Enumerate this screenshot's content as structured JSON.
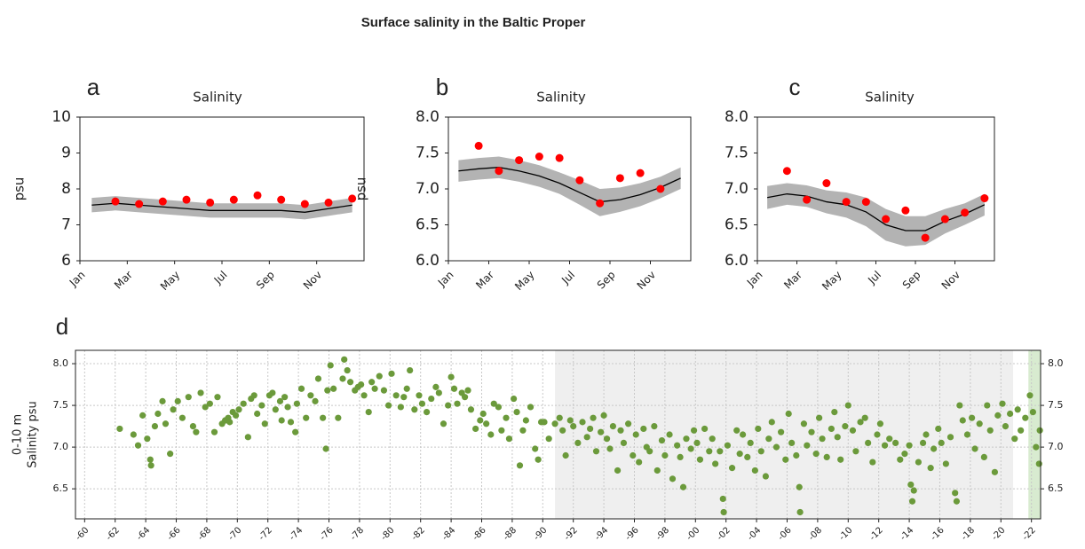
{
  "title": "Surface salinity in the Baltic Proper",
  "chart_data": [
    {
      "type": "band_line",
      "panel": "a",
      "title": "Salinity",
      "y_label": "psu",
      "categories": [
        "Jan",
        null,
        "Mar",
        null,
        "May",
        null,
        "Jul",
        null,
        "Sep",
        null,
        "Nov",
        null
      ],
      "line": [
        7.55,
        7.6,
        7.55,
        7.5,
        7.45,
        7.4,
        7.4,
        7.4,
        7.4,
        7.35,
        7.45,
        7.55
      ],
      "line_color": "#000000",
      "band_low": [
        7.35,
        7.4,
        7.35,
        7.3,
        7.25,
        7.2,
        7.2,
        7.2,
        7.2,
        7.15,
        7.25,
        7.35
      ],
      "band_high": [
        7.75,
        7.8,
        7.75,
        7.7,
        7.65,
        7.6,
        7.6,
        7.6,
        7.6,
        7.55,
        7.65,
        7.75
      ],
      "band_color": "#b3b3b3",
      "observed": [
        null,
        7.65,
        7.58,
        7.65,
        7.7,
        7.62,
        7.7,
        7.82,
        7.7,
        7.58,
        7.62,
        7.73
      ],
      "observed_color": "#ff0000",
      "ylim": [
        6,
        10
      ],
      "yticks": [
        6,
        7,
        8,
        9,
        10
      ]
    },
    {
      "type": "band_line",
      "panel": "b",
      "title": "Salinity",
      "y_label": "psu",
      "categories": [
        "Jan",
        null,
        "Mar",
        null,
        "May",
        null,
        "Jul",
        null,
        "Sep",
        null,
        "Nov",
        null
      ],
      "line": [
        7.25,
        7.28,
        7.3,
        7.25,
        7.18,
        7.08,
        6.95,
        6.82,
        6.85,
        6.92,
        7.02,
        7.15
      ],
      "line_color": "#000000",
      "band_low": [
        7.1,
        7.13,
        7.15,
        7.1,
        7.03,
        6.93,
        6.78,
        6.62,
        6.68,
        6.76,
        6.87,
        7.0
      ],
      "band_high": [
        7.4,
        7.43,
        7.45,
        7.4,
        7.33,
        7.23,
        7.12,
        7.0,
        7.02,
        7.08,
        7.17,
        7.3
      ],
      "band_color": "#b3b3b3",
      "observed": [
        null,
        7.6,
        7.25,
        7.4,
        7.45,
        7.43,
        7.12,
        6.8,
        7.15,
        7.22,
        7.0,
        null
      ],
      "observed_color": "#ff0000",
      "ylim": [
        6,
        8
      ],
      "yticks": [
        {
          "value": 6,
          "label": "6.0"
        },
        6.5,
        {
          "value": 7,
          "label": "7.0"
        },
        7.5,
        {
          "value": 8,
          "label": "8.0"
        }
      ]
    },
    {
      "type": "band_line",
      "panel": "c",
      "title": "Salinity",
      "categories": [
        "Jan",
        null,
        "Mar",
        null,
        "May",
        null,
        "Jul",
        null,
        "Sep",
        null,
        "Nov",
        null
      ],
      "line": [
        6.88,
        6.93,
        6.9,
        6.82,
        6.78,
        6.68,
        6.5,
        6.42,
        6.42,
        6.55,
        6.65,
        6.78
      ],
      "line_color": "#000000",
      "band_low": [
        6.72,
        6.78,
        6.75,
        6.66,
        6.6,
        6.48,
        6.28,
        6.2,
        6.22,
        6.38,
        6.5,
        6.63
      ],
      "band_high": [
        7.04,
        7.08,
        7.05,
        6.98,
        6.95,
        6.88,
        6.72,
        6.62,
        6.62,
        6.72,
        6.8,
        6.93
      ],
      "band_color": "#b3b3b3",
      "observed": [
        null,
        7.25,
        6.85,
        7.08,
        6.82,
        6.82,
        6.58,
        6.7,
        6.32,
        6.58,
        6.67,
        6.87
      ],
      "observed_color": "#ff0000",
      "ylim": [
        6,
        8
      ],
      "yticks": [
        {
          "value": 6,
          "label": "6.0"
        },
        6.5,
        {
          "value": 7,
          "label": "7.0"
        },
        7.5,
        {
          "value": 8,
          "label": "8.0"
        }
      ]
    },
    {
      "type": "scatter",
      "panel": "d",
      "y_label": [
        "0-10 m",
        "Salinity psu"
      ],
      "x": [
        1962.3,
        1963.2,
        1963.5,
        1963.8,
        1964.1,
        1964.3,
        1964.35,
        1964.6,
        1964.8,
        1965.1,
        1965.3,
        1965.6,
        1965.8,
        1966.1,
        1966.4,
        1966.8,
        1967.1,
        1967.3,
        1967.6,
        1967.9,
        1968.2,
        1968.5,
        1968.7,
        1969.0,
        1969.2,
        1969.4,
        1969.5,
        1969.7,
        1969.9,
        1970.1,
        1970.4,
        1970.7,
        1970.9,
        1971.1,
        1971.3,
        1971.6,
        1971.8,
        1972.1,
        1972.3,
        1972.5,
        1972.8,
        1972.9,
        1973.1,
        1973.3,
        1973.5,
        1973.8,
        1973.9,
        1974.2,
        1974.5,
        1974.8,
        1975.1,
        1975.3,
        1975.6,
        1975.8,
        1975.9,
        1976.1,
        1976.3,
        1976.6,
        1976.9,
        1977.0,
        1977.2,
        1977.4,
        1977.7,
        1977.9,
        1978.1,
        1978.3,
        1978.6,
        1978.8,
        1979.0,
        1979.3,
        1979.6,
        1979.9,
        1980.1,
        1980.4,
        1980.7,
        1980.9,
        1981.1,
        1981.3,
        1981.6,
        1981.9,
        1982.1,
        1982.4,
        1982.7,
        1983.0,
        1983.2,
        1983.5,
        1983.8,
        1984.0,
        1984.2,
        1984.4,
        1984.7,
        1984.9,
        1985.1,
        1985.3,
        1985.6,
        1985.9,
        1986.1,
        1986.3,
        1986.6,
        1986.8,
        1987.1,
        1987.3,
        1987.6,
        1987.8,
        1988.1,
        1988.3,
        1988.5,
        1988.7,
        1988.9,
        1989.2,
        1989.5,
        1989.7,
        1989.9,
        1990.1,
        1990.4,
        1990.8,
        1991.1,
        1991.3,
        1991.5,
        1991.8,
        1992.0,
        1992.3,
        1992.6,
        1992.9,
        1993.1,
        1993.3,
        1993.5,
        1993.8,
        1994.0,
        1994.2,
        1994.4,
        1994.6,
        1994.9,
        1995.1,
        1995.3,
        1995.6,
        1995.9,
        1996.1,
        1996.3,
        1996.6,
        1996.8,
        1997.0,
        1997.3,
        1997.5,
        1997.8,
        1998.0,
        1998.3,
        1998.5,
        1998.8,
        1999.0,
        1999.2,
        1999.4,
        1999.7,
        1999.9,
        2000.1,
        2000.3,
        2000.6,
        2000.9,
        2001.1,
        2001.3,
        2001.6,
        2001.8,
        2001.85,
        2002.1,
        2002.4,
        2002.7,
        2002.9,
        2003.1,
        2003.4,
        2003.6,
        2003.9,
        2004.1,
        2004.3,
        2004.6,
        2004.8,
        2005.0,
        2005.3,
        2005.6,
        2005.9,
        2006.1,
        2006.3,
        2006.6,
        2006.8,
        2006.85,
        2007.1,
        2007.3,
        2007.6,
        2007.9,
        2008.1,
        2008.3,
        2008.6,
        2008.9,
        2009.1,
        2009.3,
        2009.5,
        2009.8,
        2010.0,
        2010.3,
        2010.5,
        2010.8,
        2011.1,
        2011.3,
        2011.6,
        2011.9,
        2012.1,
        2012.4,
        2012.7,
        2013.1,
        2013.4,
        2013.7,
        2014.0,
        2014.1,
        2014.2,
        2014.3,
        2014.6,
        2014.9,
        2015.1,
        2015.4,
        2015.6,
        2015.9,
        2016.1,
        2016.4,
        2016.7,
        2017.0,
        2017.1,
        2017.3,
        2017.5,
        2017.8,
        2018.1,
        2018.3,
        2018.6,
        2018.9,
        2019.1,
        2019.3,
        2019.6,
        2019.8,
        2020.1,
        2020.3,
        2020.6,
        2020.9,
        2021.1,
        2021.3,
        2021.6,
        2021.9,
        2022.1,
        2022.3,
        2022.5,
        2022.55
      ],
      "values": [
        7.22,
        7.15,
        7.02,
        7.38,
        7.1,
        6.85,
        6.78,
        7.25,
        7.4,
        7.55,
        7.28,
        6.92,
        7.45,
        7.55,
        7.35,
        7.6,
        7.25,
        7.18,
        7.65,
        7.48,
        7.52,
        7.18,
        7.6,
        7.28,
        7.32,
        7.35,
        7.3,
        7.42,
        7.38,
        7.45,
        7.52,
        7.12,
        7.58,
        7.62,
        7.4,
        7.5,
        7.28,
        7.62,
        7.65,
        7.45,
        7.55,
        7.32,
        7.6,
        7.48,
        7.3,
        7.18,
        7.52,
        7.7,
        7.35,
        7.62,
        7.55,
        7.82,
        7.35,
        6.98,
        7.68,
        7.98,
        7.7,
        7.35,
        7.82,
        8.05,
        7.92,
        7.78,
        7.68,
        7.72,
        7.75,
        7.62,
        7.42,
        7.78,
        7.7,
        7.85,
        7.68,
        7.5,
        7.88,
        7.62,
        7.48,
        7.6,
        7.7,
        7.92,
        7.45,
        7.62,
        7.52,
        7.42,
        7.58,
        7.72,
        7.65,
        7.28,
        7.5,
        7.84,
        7.7,
        7.52,
        7.65,
        7.6,
        7.68,
        7.45,
        7.22,
        7.32,
        7.4,
        7.28,
        7.15,
        7.52,
        7.48,
        7.2,
        7.35,
        7.1,
        7.58,
        7.42,
        6.78,
        7.2,
        7.32,
        7.48,
        6.98,
        6.85,
        7.3,
        7.3,
        7.1,
        7.28,
        7.35,
        7.2,
        6.9,
        7.32,
        7.25,
        7.05,
        7.3,
        7.12,
        7.22,
        7.35,
        6.95,
        7.18,
        7.38,
        7.1,
        6.98,
        7.25,
        6.72,
        7.2,
        7.05,
        7.28,
        6.9,
        7.15,
        6.82,
        7.22,
        7.0,
        6.95,
        7.25,
        6.72,
        7.08,
        6.9,
        7.15,
        6.62,
        7.02,
        6.88,
        6.52,
        7.1,
        6.98,
        7.2,
        7.05,
        6.85,
        7.22,
        6.95,
        7.1,
        6.8,
        6.95,
        6.38,
        6.22,
        7.02,
        6.75,
        7.2,
        6.92,
        7.15,
        6.88,
        7.05,
        6.72,
        7.22,
        6.95,
        6.65,
        7.1,
        7.3,
        7.0,
        7.18,
        6.85,
        7.4,
        7.05,
        6.9,
        6.52,
        6.22,
        7.28,
        7.02,
        7.18,
        6.92,
        7.35,
        7.1,
        6.88,
        7.22,
        7.42,
        7.12,
        6.85,
        7.25,
        7.5,
        7.2,
        6.95,
        7.3,
        7.35,
        7.05,
        6.82,
        7.15,
        7.28,
        7.02,
        7.1,
        7.05,
        6.85,
        6.92,
        7.02,
        6.55,
        6.35,
        6.48,
        6.82,
        7.05,
        7.15,
        6.75,
        6.98,
        7.22,
        7.05,
        6.8,
        7.12,
        6.45,
        6.35,
        7.5,
        7.32,
        7.15,
        7.35,
        6.98,
        7.28,
        6.88,
        7.5,
        7.2,
        6.7,
        7.38,
        7.52,
        7.25,
        7.4,
        7.1,
        7.45,
        7.2,
        7.35,
        7.62,
        7.42,
        7.0,
        6.8,
        7.2
      ],
      "color": "#6b9a3b",
      "xlim": [
        1959.4,
        2022.6
      ],
      "xticks": [
        {
          "value": 1960,
          "label": "-60"
        },
        {
          "value": 1962,
          "label": "-62"
        },
        {
          "value": 1964,
          "label": "-64"
        },
        {
          "value": 1966,
          "label": "-66"
        },
        {
          "value": 1968,
          "label": "-68"
        },
        {
          "value": 1970,
          "label": "-70"
        },
        {
          "value": 1972,
          "label": "-72"
        },
        {
          "value": 1974,
          "label": "-74"
        },
        {
          "value": 1976,
          "label": "-76"
        },
        {
          "value": 1978,
          "label": "-78"
        },
        {
          "value": 1980,
          "label": "-80"
        },
        {
          "value": 1982,
          "label": "-82"
        },
        {
          "value": 1984,
          "label": "-84"
        },
        {
          "value": 1986,
          "label": "-86"
        },
        {
          "value": 1988,
          "label": "-88"
        },
        {
          "value": 1990,
          "label": "-90"
        },
        {
          "value": 1992,
          "label": "-92"
        },
        {
          "value": 1994,
          "label": "-94"
        },
        {
          "value": 1996,
          "label": "-96"
        },
        {
          "value": 1998,
          "label": "-98"
        },
        {
          "value": 2000,
          "label": "-00"
        },
        {
          "value": 2002,
          "label": "-02"
        },
        {
          "value": 2004,
          "label": "-04"
        },
        {
          "value": 2006,
          "label": "-06"
        },
        {
          "value": 2008,
          "label": "-08"
        },
        {
          "value": 2010,
          "label": "-10"
        },
        {
          "value": 2012,
          "label": "-12"
        },
        {
          "value": 2014,
          "label": "-14"
        },
        {
          "value": 2016,
          "label": "-16"
        },
        {
          "value": 2018,
          "label": "-18"
        },
        {
          "value": 2020,
          "label": "-20"
        },
        {
          "value": 2022,
          "label": "-22"
        }
      ],
      "ylim": [
        6.14,
        8.16
      ],
      "yticks": [
        6.5,
        {
          "value": 7,
          "label": "7.0"
        },
        7.5,
        {
          "value": 8,
          "label": "8.0"
        }
      ],
      "grid": true,
      "shaded_ranges": [
        {
          "from": 1990.8,
          "to": 2020.8,
          "color": "#efefef"
        },
        {
          "from": 2021.8,
          "to": 2022.6,
          "color": "#d8ebd0"
        }
      ]
    }
  ]
}
